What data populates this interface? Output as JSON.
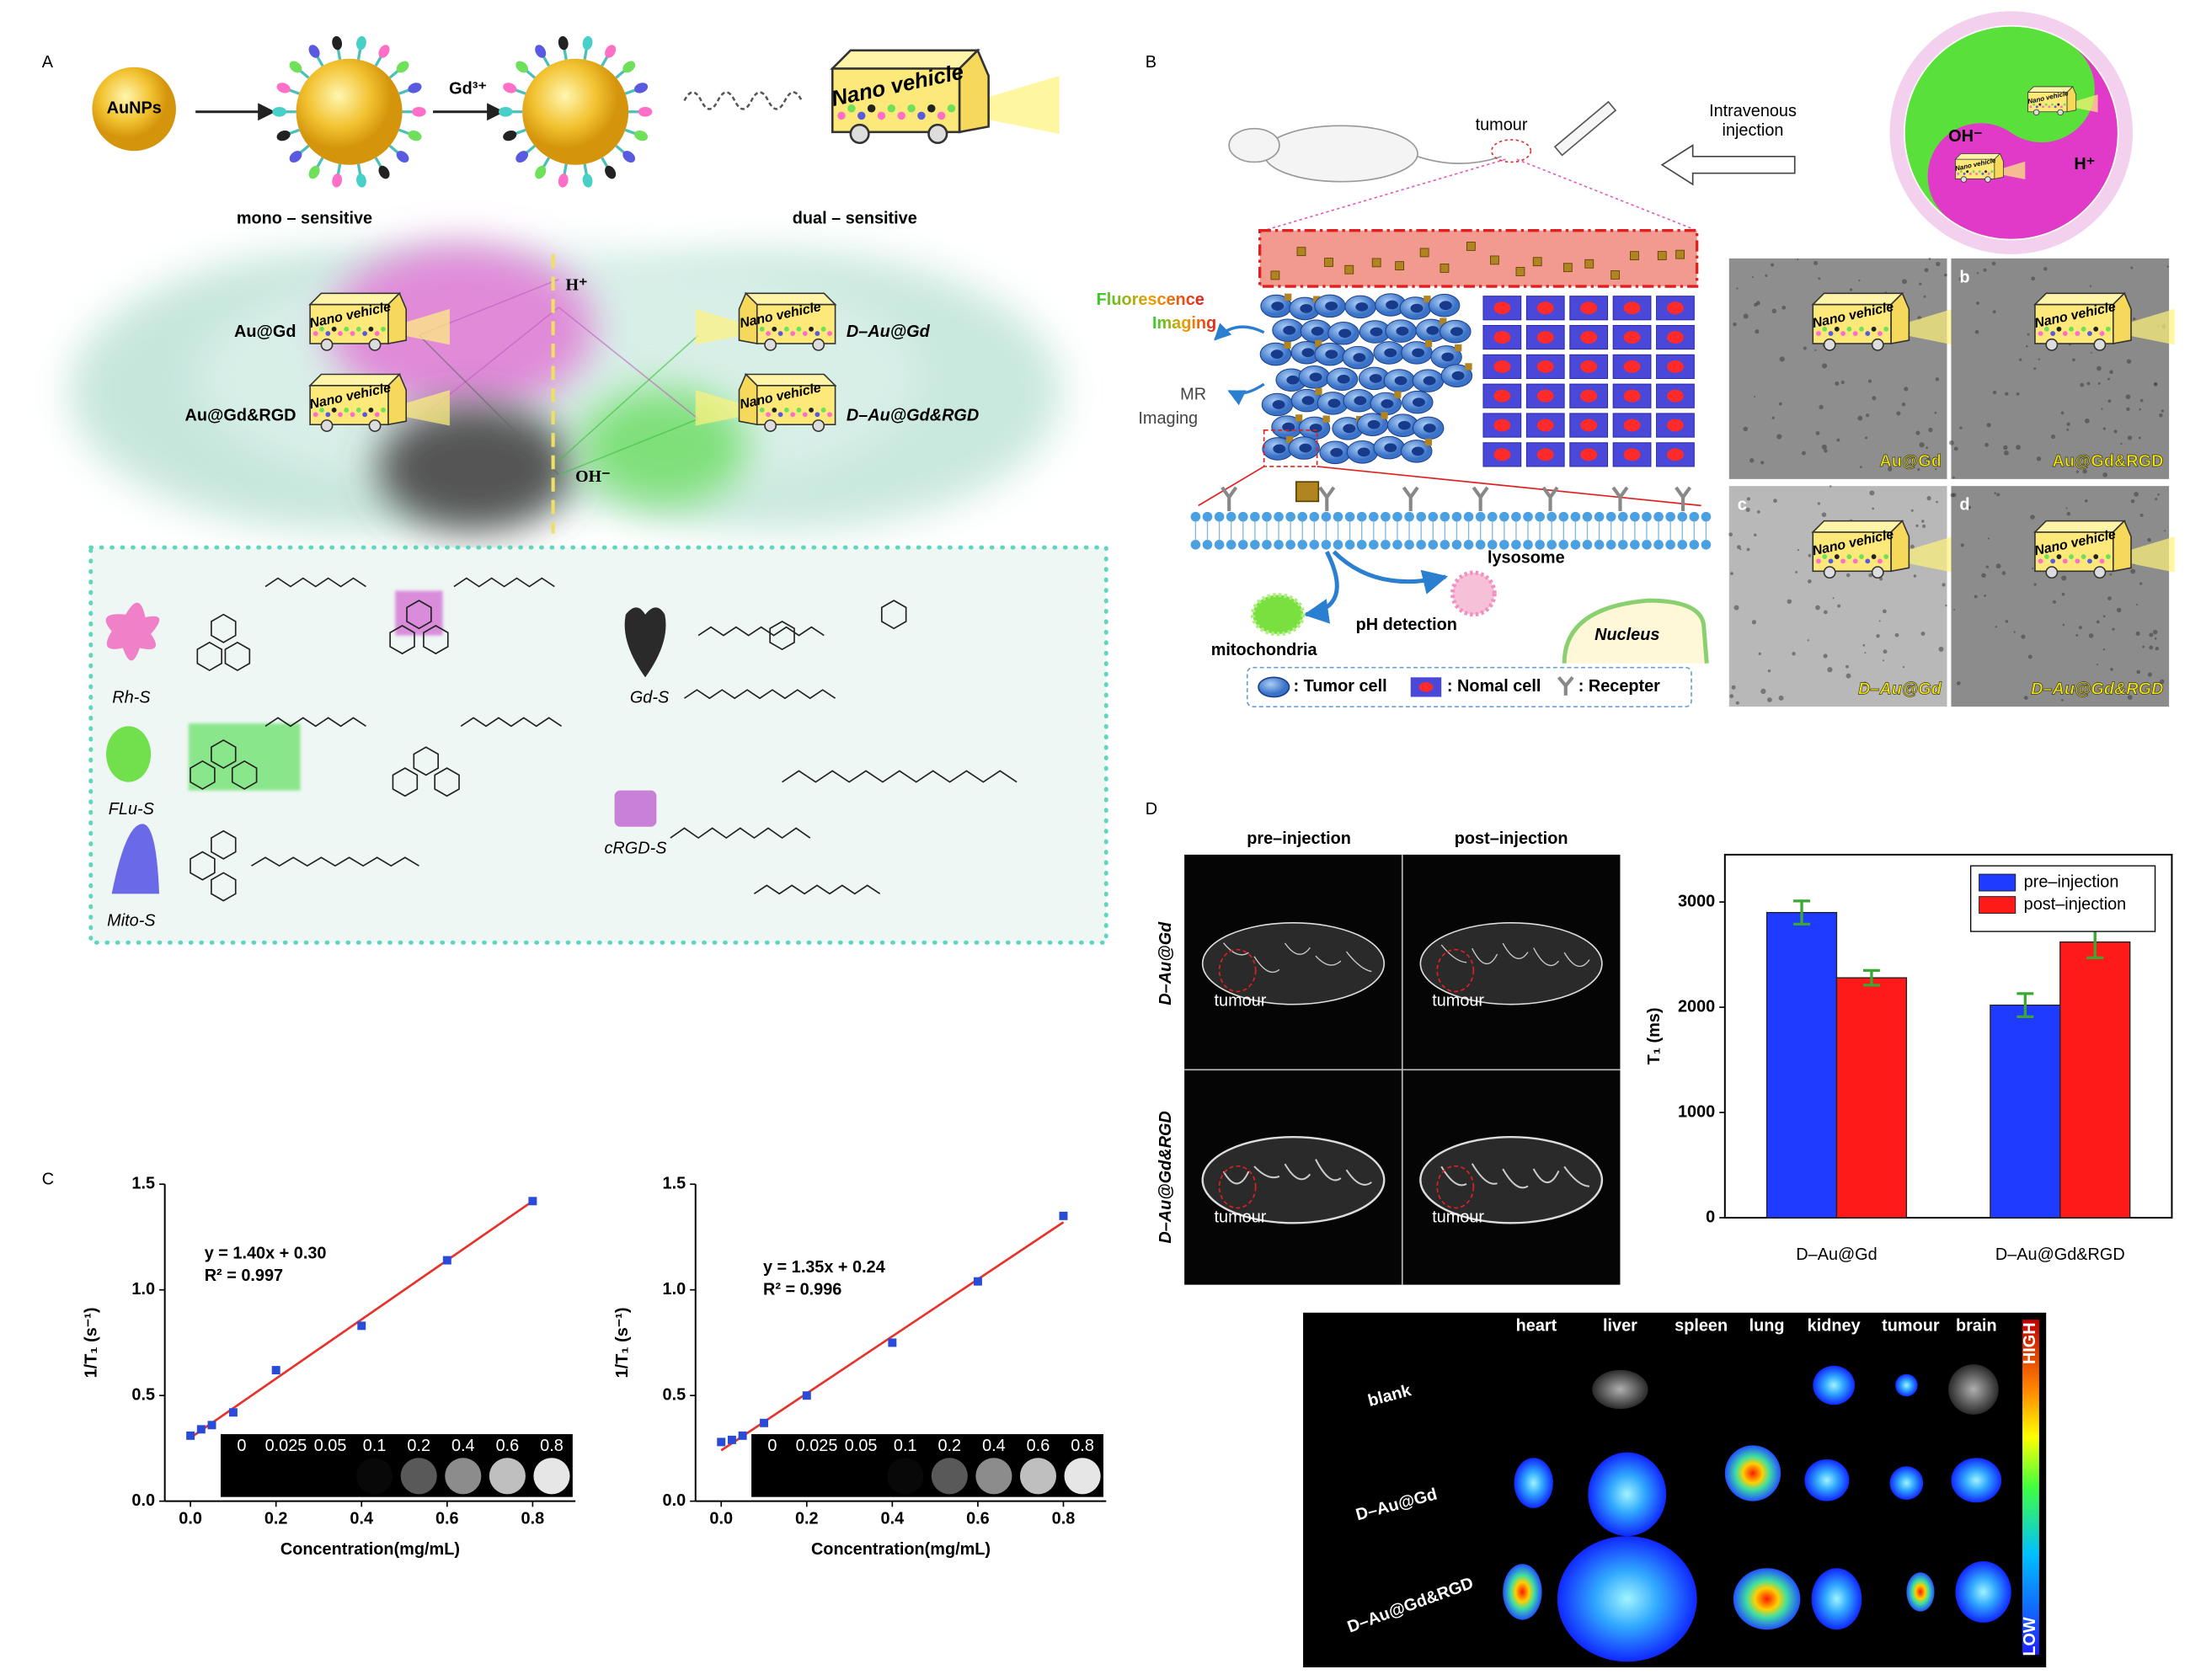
{
  "panel_labels": [
    "A",
    "B",
    "C",
    "D"
  ],
  "panel_a": {
    "start": "AuNPs",
    "reagent": "Gd³⁺",
    "mono_label": "mono – sensitive",
    "dual_label": "dual – sensitive",
    "vehicle": "Nano vehicle",
    "acid": "H⁺",
    "base": "OH⁻",
    "left_labels": [
      "Au@Gd",
      "Au@Gd&RGD"
    ],
    "right_labels": [
      "D–Au@Gd",
      "D–Au@Gd&RGD"
    ],
    "components": [
      "Rh-S",
      "FLu-S",
      "Mito-S",
      "Gd-S",
      "cRGD-S"
    ]
  },
  "panel_b": {
    "tumour": "tumour",
    "injection": [
      "Intravenous",
      "injection"
    ],
    "yin_yang": [
      "OH⁻",
      "H⁺"
    ],
    "fluorescence": [
      "Fluorescence",
      "Imaging"
    ],
    "mr": [
      "MR",
      "Imaging"
    ],
    "lysosome": "lysosome",
    "mitochondria": "mitochondria",
    "ph": "pH detection",
    "nucleus": "Nucleus",
    "legend": [
      ": Tumor cell",
      ": Nomal cell",
      ": Recepter"
    ],
    "tem_letters": [
      "b",
      "c",
      "d"
    ],
    "tem_labels": [
      "Au@Gd",
      "Au@Gd&RGD",
      "D–Au@Gd",
      "D–Au@Gd&RGD"
    ]
  },
  "panel_d": {
    "columns": [
      "pre–injection",
      "post–injection"
    ],
    "rows": [
      "D–Au@Gd",
      "D–Au@Gd&RGD"
    ],
    "tumour": "tumour",
    "organs": [
      "heart",
      "liver",
      "spleen",
      "lung",
      "kidney",
      "tumour",
      "brain"
    ],
    "fluor_rows": [
      "blank",
      "D–Au@Gd",
      "D–Au@Gd&RGD"
    ],
    "scale": [
      "HIGH",
      "LOW"
    ]
  },
  "chart_data": [
    {
      "type": "scatter",
      "x_label": "Concentration(mg/mL)",
      "y_label": "1/T₁ (s⁻¹)",
      "equation": "y = 1.40x + 0.30",
      "r_squared": "R² = 0.997",
      "color": "#2a4bd7",
      "x": [
        0,
        0.025,
        0.05,
        0.1,
        0.2,
        0.4,
        0.6,
        0.8
      ],
      "values": [
        0.31,
        0.34,
        0.36,
        0.42,
        0.62,
        0.83,
        1.14,
        1.42
      ],
      "fit_line": {
        "color": "#e8312a",
        "x": [
          0,
          0.8
        ],
        "values": [
          0.3,
          1.42
        ]
      },
      "xlim": [
        -0.06,
        0.9
      ],
      "xticks": [
        {
          "value": 0,
          "label": "0.0"
        },
        0.2,
        0.4,
        0.6,
        0.8
      ],
      "ylim": [
        0,
        1.5
      ],
      "yticks": [
        {
          "value": 0,
          "label": "0.0"
        },
        0.5,
        {
          "value": 1,
          "label": "1.0"
        },
        1.5
      ],
      "phantom_labels": [
        "0",
        "0.025",
        "0.05",
        "0.1",
        "0.2",
        "0.4",
        "0.6",
        "0.8"
      ]
    },
    {
      "type": "scatter",
      "x_label": "Concentration(mg/mL)",
      "y_label": "1/T₁ (s⁻¹)",
      "equation": "y = 1.35x + 0.24",
      "r_squared": "R² = 0.996",
      "color": "#2a4bd7",
      "x": [
        0,
        0.025,
        0.05,
        0.1,
        0.2,
        0.4,
        0.6,
        0.8
      ],
      "values": [
        0.28,
        0.29,
        0.31,
        0.37,
        0.5,
        0.75,
        1.04,
        1.35
      ],
      "fit_line": {
        "color": "#e8312a",
        "x": [
          0,
          0.8
        ],
        "values": [
          0.24,
          1.32
        ]
      },
      "xlim": [
        -0.06,
        0.9
      ],
      "xticks": [
        {
          "value": 0,
          "label": "0.0"
        },
        0.2,
        0.4,
        0.6,
        0.8
      ],
      "ylim": [
        0,
        1.5
      ],
      "yticks": [
        {
          "value": 0,
          "label": "0.0"
        },
        0.5,
        {
          "value": 1,
          "label": "1.0"
        },
        1.5
      ],
      "phantom_labels": [
        "0",
        "0.025",
        "0.05",
        "0.1",
        "0.2",
        "0.4",
        "0.6",
        "0.8"
      ]
    },
    {
      "type": "bar",
      "y_label": "T₁ (ms)",
      "categories": [
        "D–Au@Gd",
        "D–Au@Gd&RGD"
      ],
      "series": [
        {
          "name": "pre–injection",
          "color": "#1f3bff",
          "values": [
            2900,
            2020
          ],
          "errors": [
            110,
            110
          ]
        },
        {
          "name": "post–injection",
          "color": "#ff1a1a",
          "values": [
            2280,
            2620
          ],
          "errors": [
            70,
            150
          ]
        }
      ],
      "error_color": "#3aa832",
      "ylim": [
        0,
        3450
      ],
      "yticks": [
        0,
        1000,
        2000,
        3000
      ],
      "legend": "top-right"
    }
  ]
}
